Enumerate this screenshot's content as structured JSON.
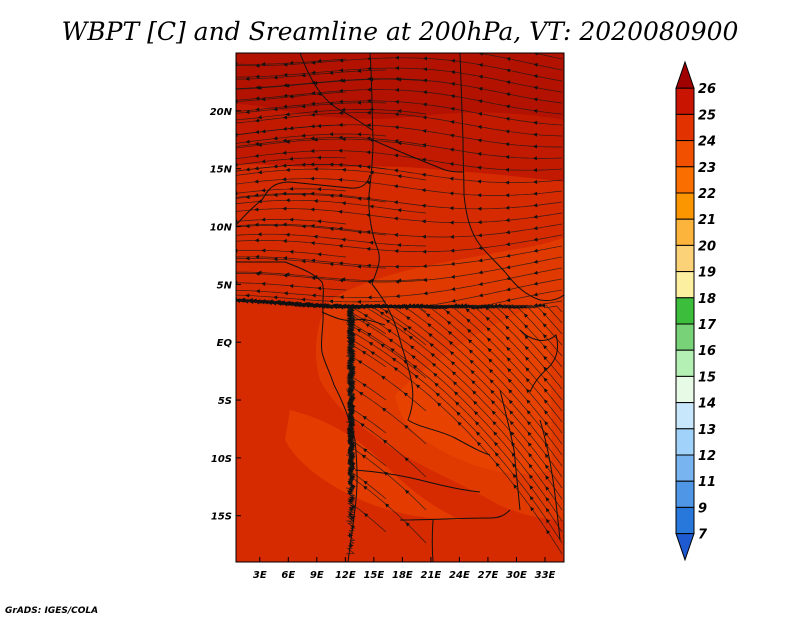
{
  "chart_data": {
    "type": "heatmap",
    "title": "WBPT [C] and Sreamline at 200hPa, VT: 2020080900",
    "variable": "WBPT",
    "units": "C",
    "level": "200hPa",
    "valid_time": "2020080900",
    "overlay": "streamlines",
    "x_ticks": [
      "3E",
      "6E",
      "9E",
      "12E",
      "15E",
      "18E",
      "21E",
      "24E",
      "27E",
      "30E",
      "33E"
    ],
    "x_tick_values": [
      3,
      6,
      9,
      12,
      15,
      18,
      21,
      24,
      27,
      30,
      33
    ],
    "y_ticks": [
      "20N",
      "15N",
      "10N",
      "5N",
      "EQ",
      "5S",
      "10S",
      "15S"
    ],
    "y_tick_values": [
      20,
      15,
      10,
      5,
      0,
      -5,
      -10,
      -15
    ],
    "xlim": [
      0.5,
      35
    ],
    "ylim": [
      -19,
      25
    ],
    "colorbar": {
      "levels": [
        "26",
        "25",
        "24",
        "23",
        "22",
        "21",
        "20",
        "19",
        "18",
        "17",
        "16",
        "15",
        "14",
        "13",
        "12",
        "11",
        "9",
        "7"
      ],
      "colors": [
        "#a00000",
        "#c81400",
        "#e13200",
        "#f05000",
        "#fa6e00",
        "#fc9600",
        "#fcb43c",
        "#fcd278",
        "#fcf0a0",
        "#3cbe3c",
        "#78d278",
        "#b4f0b4",
        "#e6fae6",
        "#c8e6fc",
        "#a0d2fa",
        "#78b4f0",
        "#5096e6",
        "#2878dc",
        "#1e5ad2"
      ]
    }
  },
  "footer": {
    "credit": "GrADS: IGES/COLA"
  }
}
